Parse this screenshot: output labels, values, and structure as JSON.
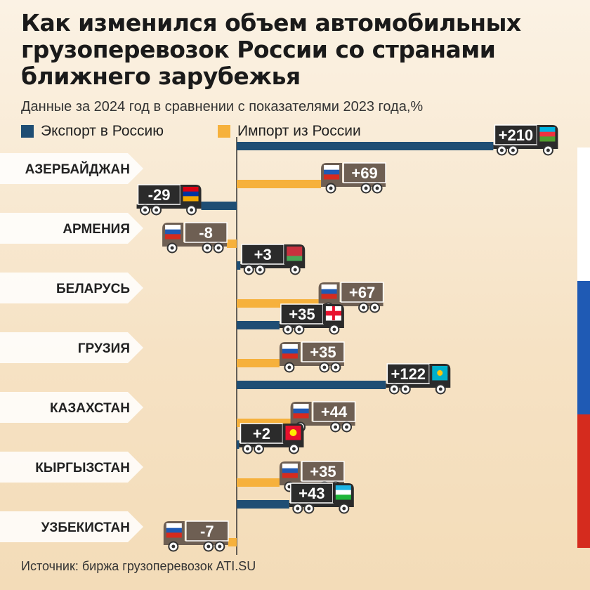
{
  "title": "Как изменился объем автомобильных грузоперевозок России со странами ближнего зарубежья",
  "subtitle": "Данные за 2024 год в сравнении с показателями 2023 года,%",
  "source": "Источник: биржа грузоперевозок ATI.SU",
  "colors": {
    "export": "#1f4e74",
    "import": "#f6b13c",
    "export_truck": "#2b2b2b",
    "import_truck": "#6e5f53"
  },
  "chart_data": {
    "type": "bar",
    "orientation": "horizontal",
    "categories": [
      "АЗЕРБАЙДЖАН",
      "АРМЕНИЯ",
      "БЕЛАРУСЬ",
      "ГРУЗИЯ",
      "КАЗАХСТАН",
      "КЫРГЫЗСТАН",
      "УЗБЕКИСТАН"
    ],
    "series": [
      {
        "name": "Экспорт в Россию",
        "values": [
          210,
          -29,
          3,
          35,
          122,
          2,
          43
        ],
        "labels": [
          "+210",
          "-29",
          "+3",
          "+35",
          "+122",
          "+2",
          "+43"
        ]
      },
      {
        "name": "Импорт из России",
        "values": [
          69,
          -8,
          67,
          35,
          44,
          35,
          -7
        ],
        "labels": [
          "+69",
          "-8",
          "+67",
          "+35",
          "+44",
          "+35",
          "-7"
        ]
      }
    ],
    "export_flags": [
      "azerbaijan",
      "armenia",
      "belarus",
      "georgia",
      "kazakhstan",
      "kyrgyzstan",
      "uzbekistan"
    ],
    "import_flag": "russia",
    "grid": false,
    "legend": "top-left"
  }
}
